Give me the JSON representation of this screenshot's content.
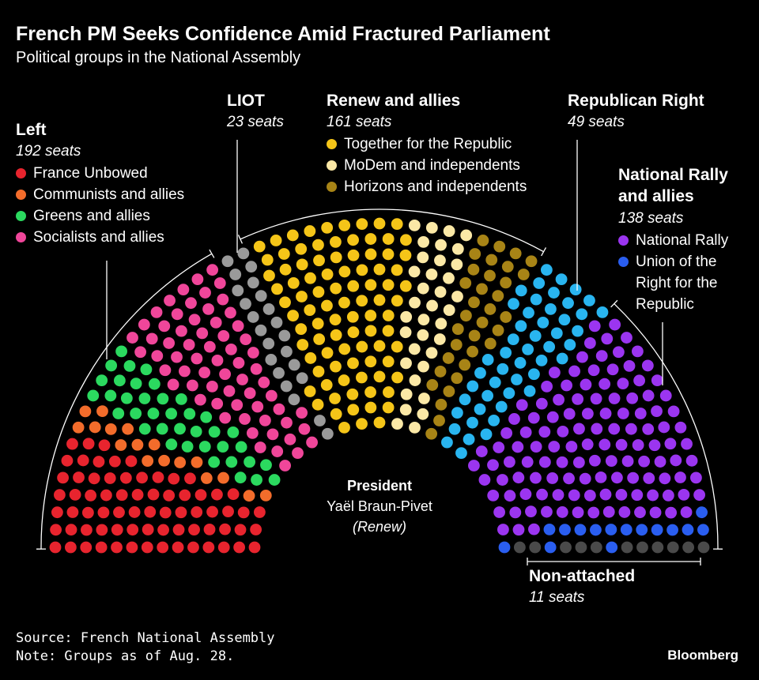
{
  "chart_data": {
    "type": "parliament",
    "title": "French PM Seeks Confidence Amid Fractured Parliament",
    "subtitle": "Political groups in the National Assembly",
    "groups": [
      {
        "name": "Left",
        "total": 192,
        "total_label": "192 seats",
        "series": [
          {
            "name": "France Unbowed",
            "color": "#e8242e",
            "values": 71
          },
          {
            "name": "Communists and allies",
            "color": "#f36c2b",
            "values": 17
          },
          {
            "name": "Greens and allies",
            "color": "#2bd95f",
            "values": 38
          },
          {
            "name": "Socialists and allies",
            "color": "#f0469a",
            "values": 66
          }
        ]
      },
      {
        "name": "LIOT",
        "total": 23,
        "total_label": "23 seats",
        "color": "#9a9a9a"
      },
      {
        "name": "Renew and allies",
        "total": 161,
        "total_label": "161 seats",
        "series": [
          {
            "name": "Together for the Republic",
            "color": "#f5c518",
            "values": 91
          },
          {
            "name": "MoDem and independents",
            "color": "#fbe8a6",
            "values": 36
          },
          {
            "name": "Horizons and independents",
            "color": "#a88416",
            "values": 34
          }
        ]
      },
      {
        "name": "Republican Right",
        "total": 49,
        "total_label": "49 seats",
        "color": "#29b5f0"
      },
      {
        "name": "National Rally and allies",
        "total": 138,
        "total_label": "138 seats",
        "series": [
          {
            "name": "National Rally",
            "color": "#9b35f0",
            "values": 123
          },
          {
            "name": "Union of the Right for the Republic",
            "color": "#2a5ef0",
            "values": 15
          }
        ]
      },
      {
        "name": "Non-attached",
        "total": 11,
        "total_label": "11 seats",
        "color": "#4a4a4a"
      }
    ]
  },
  "president": {
    "label": "President",
    "name": "Yaël Braun-Pivet",
    "party": "(Renew)"
  },
  "source": "Source: French National Assembly",
  "note": "Note: Groups as of Aug. 28.",
  "brand": "Bloomberg"
}
